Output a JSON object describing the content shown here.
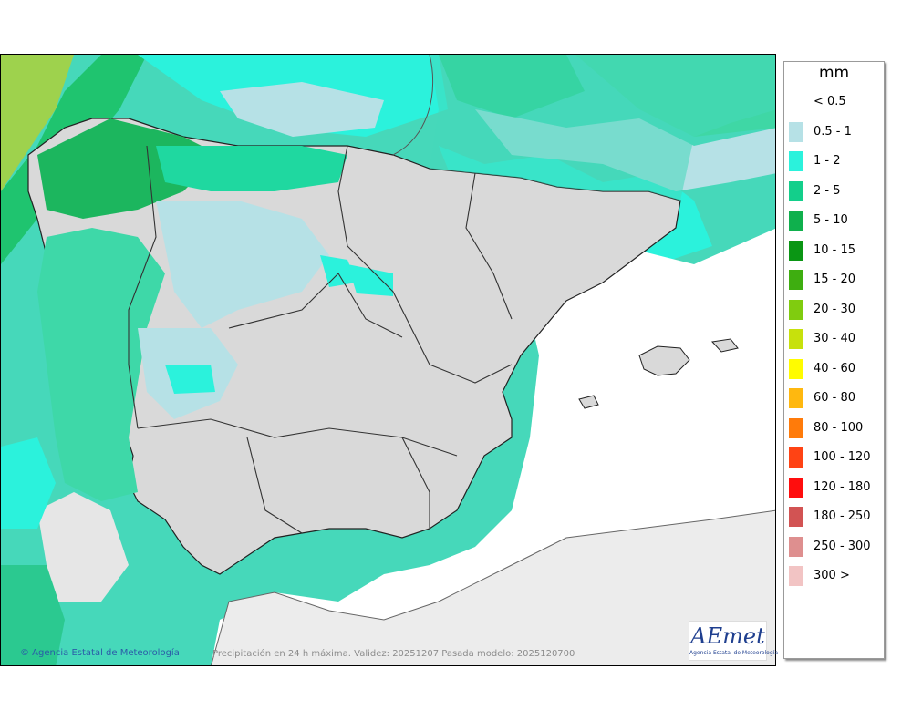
{
  "legend": {
    "unit": "mm",
    "items": [
      {
        "label": "< 0.5",
        "color": "#ffffff"
      },
      {
        "label": "0.5 - 1",
        "color": "#b6e1e6"
      },
      {
        "label": "1 - 2",
        "color": "#2bf2dc"
      },
      {
        "label": "2 - 5",
        "color": "#13cf8b"
      },
      {
        "label": "5 - 10",
        "color": "#0fb04d"
      },
      {
        "label": "10 - 15",
        "color": "#0a9614"
      },
      {
        "label": "15 - 20",
        "color": "#3eae10"
      },
      {
        "label": "20 - 30",
        "color": "#80cc0f"
      },
      {
        "label": "30 - 40",
        "color": "#c7e10c"
      },
      {
        "label": "40 - 60",
        "color": "#fffc00"
      },
      {
        "label": "60 - 80",
        "color": "#ffb80f"
      },
      {
        "label": "80 - 100",
        "color": "#ff7b0a"
      },
      {
        "label": "100 - 120",
        "color": "#ff4314"
      },
      {
        "label": "120 - 180",
        "color": "#ff0d0d"
      },
      {
        "label": "180 - 250",
        "color": "#d25353"
      },
      {
        "label": "250 - 300",
        "color": "#de8f8f"
      },
      {
        "label": "300 >",
        "color": "#f2c4c4"
      }
    ]
  },
  "footer": {
    "credit": "© Agencia Estatal de Meteorología",
    "caption": "Precipitación en 24 h máxima. Validez: 20251207 Pasada modelo: 2025120700"
  },
  "logo": {
    "text": "AEmet",
    "subtitle": "Agencia Estatal de Meteorología"
  },
  "colors": {
    "sea": "#46d8ba",
    "land": "#d7d7d7",
    "light_rain": "#b6e1e6",
    "cyan_rain": "#2bf2dc",
    "green_rain": "#13cf8b",
    "dark_green_rain": "#0fb04d"
  }
}
